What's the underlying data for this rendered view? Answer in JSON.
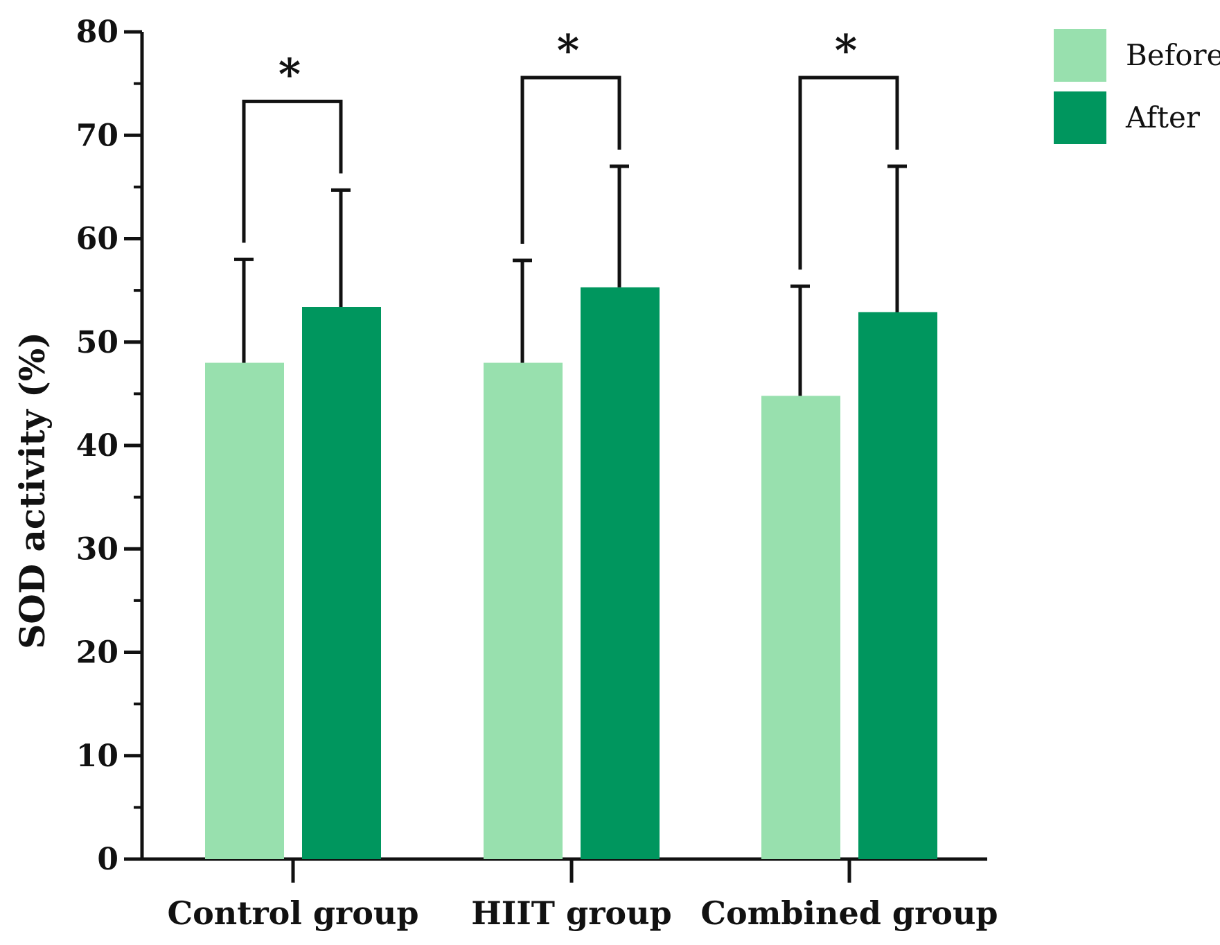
{
  "chart_data": {
    "type": "bar",
    "title": "",
    "xlabel": "",
    "ylabel": "SOD activity (%)",
    "ylim": [
      0,
      80
    ],
    "y_major_ticks": [
      0,
      10,
      20,
      30,
      40,
      50,
      60,
      70,
      80
    ],
    "y_minor_step": 5,
    "grid": false,
    "legend_position": "top-right",
    "categories": [
      "Control group",
      "HIIT group",
      "Combined group"
    ],
    "series": [
      {
        "name": "Before",
        "color": "#98E0AE",
        "values": [
          48.0,
          48.0,
          44.8
        ],
        "error_upper": [
          10.0,
          9.9,
          10.6
        ]
      },
      {
        "name": "After",
        "color": "#00965E",
        "values": [
          53.4,
          55.3,
          52.9
        ],
        "error_upper": [
          11.3,
          11.7,
          14.1
        ]
      }
    ],
    "significance": [
      {
        "category": "Control group",
        "label": "*"
      },
      {
        "category": "HIIT group",
        "label": "*"
      },
      {
        "category": "Combined group",
        "label": "*"
      }
    ]
  }
}
